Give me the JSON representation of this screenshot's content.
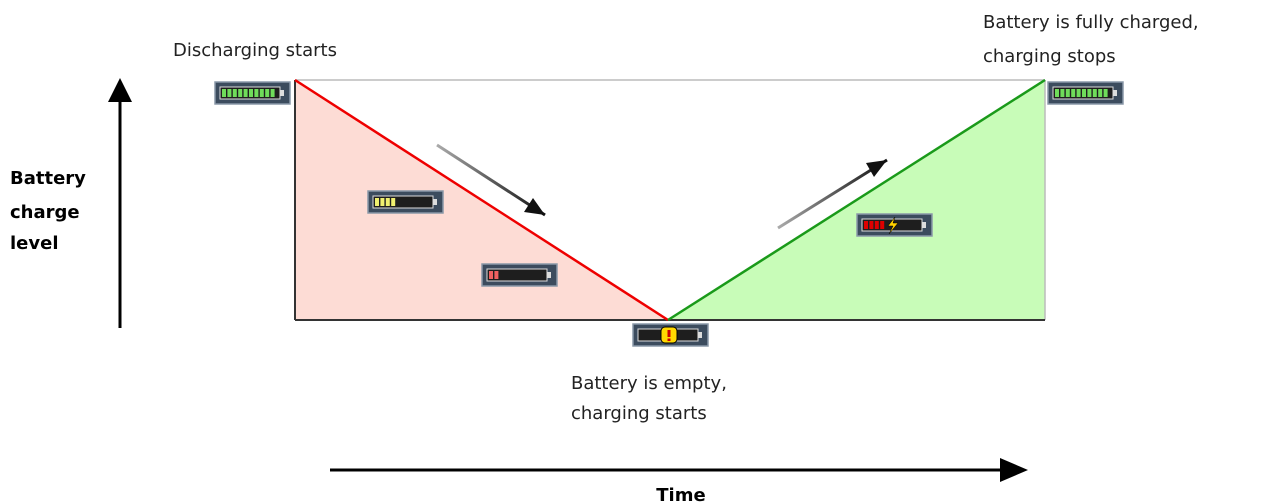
{
  "y_axis_label": [
    "Battery",
    "charge",
    "level"
  ],
  "x_axis_label": "Time",
  "annotations": {
    "discharging_starts": [
      "Discharging starts"
    ],
    "fully_charged": [
      "Battery is fully charged,",
      "charging stops"
    ],
    "empty": [
      "Battery is empty,",
      "charging starts"
    ]
  }
}
